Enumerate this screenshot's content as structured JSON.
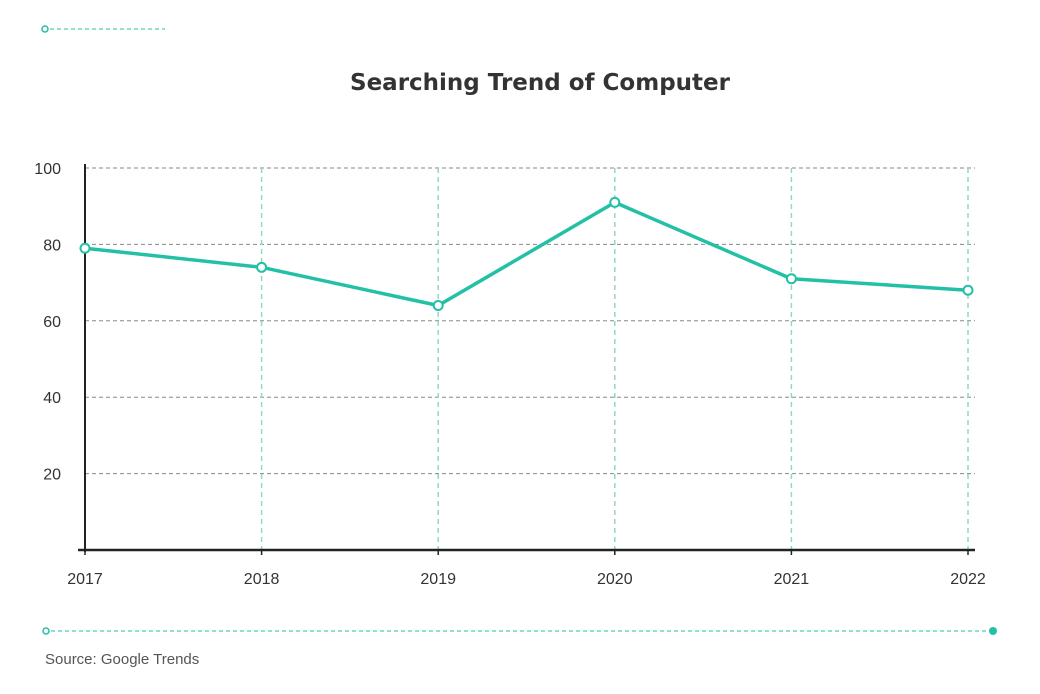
{
  "colors": {
    "accent": "#22c1a6",
    "axis": "#222222",
    "grid_h": "#888888",
    "grid_v": "#8fd9c8",
    "text": "#333333"
  },
  "source_text": "Source: Google Trends",
  "chart_data": {
    "type": "line",
    "title": "Searching Trend of Computer",
    "xlabel": "",
    "ylabel": "",
    "categories": [
      "2017",
      "2018",
      "2019",
      "2020",
      "2021",
      "2022"
    ],
    "series": [
      {
        "name": "Computer",
        "values": [
          79,
          74,
          64,
          91,
          71,
          68
        ]
      }
    ],
    "yticks": [
      20,
      40,
      60,
      80,
      100
    ],
    "ylim": [
      0,
      100
    ],
    "grid": true,
    "legend": "none"
  }
}
